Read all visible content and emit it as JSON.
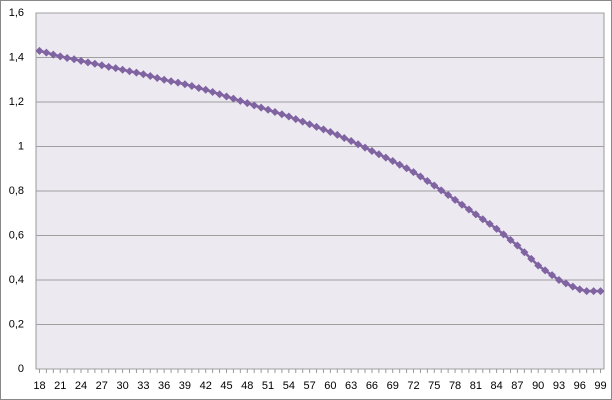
{
  "chart_data": {
    "type": "line",
    "marker": "diamond",
    "color": "#8064a2",
    "grid": true,
    "categories": [
      18,
      null,
      null,
      21,
      null,
      null,
      24,
      null,
      null,
      27,
      null,
      null,
      30,
      null,
      null,
      33,
      null,
      null,
      36,
      null,
      null,
      39,
      null,
      null,
      42,
      null,
      null,
      45,
      null,
      null,
      48,
      null,
      null,
      51,
      null,
      null,
      54,
      null,
      null,
      57,
      null,
      null,
      60,
      null,
      null,
      63,
      null,
      null,
      66,
      null,
      null,
      69,
      null,
      null,
      72,
      null,
      null,
      75,
      null,
      null,
      78,
      null,
      null,
      81,
      null,
      null,
      84,
      null,
      null,
      87,
      null,
      null,
      90,
      null,
      null,
      93,
      null,
      null,
      96,
      null,
      null,
      99
    ],
    "values": [
      1.43,
      1.422,
      1.413,
      1.405,
      1.398,
      1.392,
      1.385,
      1.378,
      1.372,
      1.365,
      1.358,
      1.352,
      1.345,
      1.338,
      1.332,
      1.325,
      1.317,
      1.308,
      1.3,
      1.293,
      1.287,
      1.28,
      1.272,
      1.263,
      1.255,
      1.245,
      1.235,
      1.225,
      1.215,
      1.205,
      1.195,
      1.185,
      1.175,
      1.165,
      1.155,
      1.145,
      1.135,
      1.123,
      1.112,
      1.1,
      1.088,
      1.077,
      1.065,
      1.052,
      1.038,
      1.025,
      1.01,
      0.995,
      0.98,
      0.965,
      0.95,
      0.935,
      0.918,
      0.902,
      0.885,
      0.865,
      0.845,
      0.825,
      0.803,
      0.782,
      0.76,
      0.738,
      0.717,
      0.695,
      0.673,
      0.652,
      0.63,
      0.605,
      0.58,
      0.555,
      0.525,
      0.495,
      0.465,
      0.443,
      0.422,
      0.4,
      0.385,
      0.37,
      0.358,
      0.35,
      0.35,
      0.35
    ],
    "ylim": [
      0,
      1.6
    ],
    "yticks": [
      0,
      {
        "value": 0.2,
        "label": "0,2"
      },
      {
        "value": 0.4,
        "label": "0,4"
      },
      {
        "value": 0.6,
        "label": "0,6"
      },
      {
        "value": 0.8,
        "label": "0,8"
      },
      1,
      {
        "value": 1.2,
        "label": "1,2"
      },
      {
        "value": 1.4,
        "label": "1,4"
      },
      {
        "value": 1.6,
        "label": "1,6"
      }
    ]
  }
}
